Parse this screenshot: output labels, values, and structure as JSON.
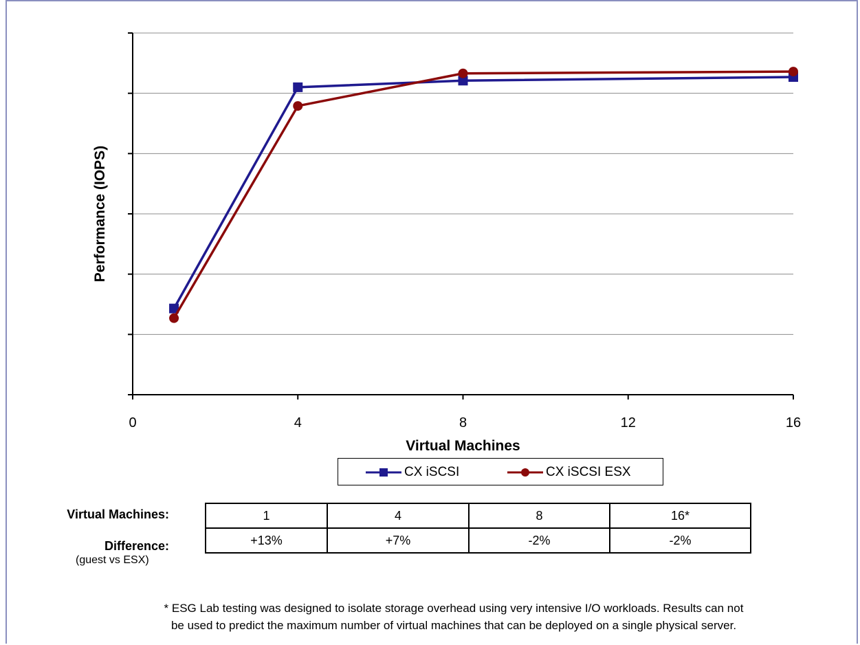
{
  "chart_data": {
    "type": "line",
    "title": "",
    "xlabel": "Virtual Machines",
    "ylabel": "Performance (IOPS)",
    "xlim": [
      0,
      16
    ],
    "ylim": [
      0,
      6
    ],
    "x_ticks": [
      "0",
      "4",
      "8",
      "12",
      "16"
    ],
    "y_tick_labels_shown": false,
    "grid": "horizontal",
    "legend_position": "bottom",
    "series": [
      {
        "name": "CX iSCSI",
        "color": "#1f1a8f",
        "marker": "square",
        "x": [
          1,
          4,
          8,
          16
        ],
        "y": [
          1.43,
          5.1,
          5.21,
          5.27
        ]
      },
      {
        "name": "CX iSCSI ESX",
        "color": "#8b0a0a",
        "marker": "circle",
        "x": [
          1,
          4,
          8,
          16
        ],
        "y": [
          1.27,
          4.79,
          5.33,
          5.36
        ]
      }
    ]
  },
  "table": {
    "row1_label": "Virtual Machines:",
    "row2_label": "Difference:",
    "row2_sub": "(guest vs ESX)",
    "vms": [
      "1",
      "4",
      "8",
      "16*"
    ],
    "diffs": [
      "+13%",
      "+7%",
      "-2%",
      "-2%"
    ]
  },
  "footnote": {
    "line1": "* ESG Lab testing was designed to isolate storage overhead using very intensive I/O workloads.   Results can not",
    "line2": "be used to predict the maximum number of virtual machines that can be deployed on a single physical  server."
  }
}
